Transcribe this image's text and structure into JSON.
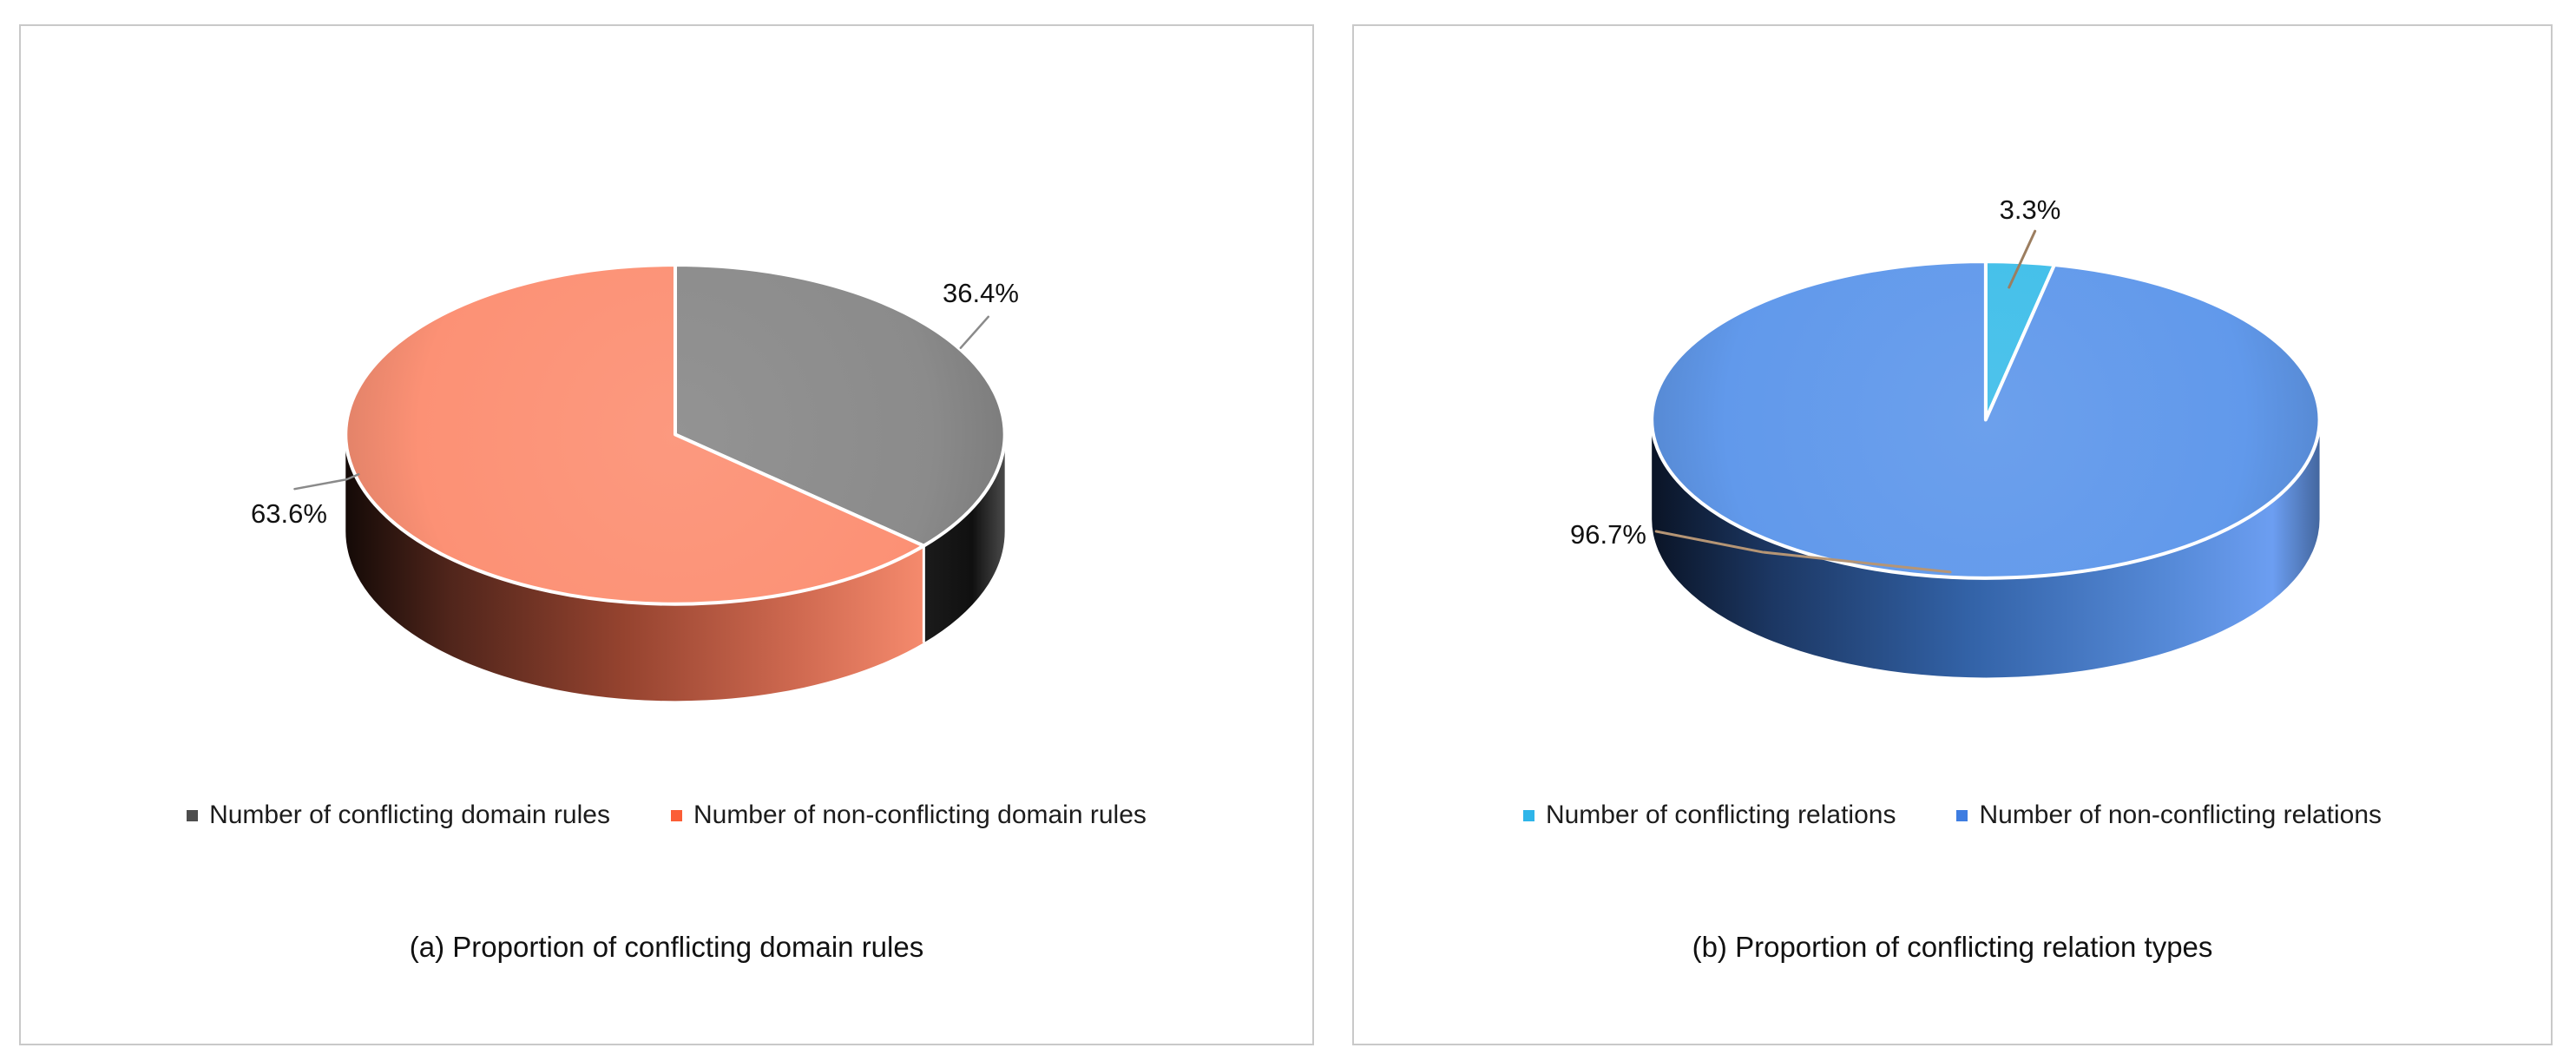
{
  "figure": {
    "background": "#ffffff",
    "panel_border_color": "#c9c9c9"
  },
  "chart_data": [
    {
      "type": "pie",
      "style": "3d-pie",
      "caption": "(a) Proportion of conflicting domain rules",
      "legend_position": "bottom",
      "start_angle_deg": 0,
      "direction": "clockwise",
      "slices": [
        {
          "name": "Number of conflicting domain rules",
          "value_pct": 36.4,
          "label": "36.4%",
          "color": "#8B8B8B",
          "legend_color": "#4D4D4D"
        },
        {
          "name": "Number of non-conflicting domain rules",
          "value_pct": 63.6,
          "label": "63.6%",
          "color": "#FC9175",
          "legend_color": "#FB5D36"
        }
      ]
    },
    {
      "type": "pie",
      "style": "3d-pie",
      "caption": "(b) Proportion of conflicting relation types",
      "legend_position": "bottom",
      "start_angle_deg": 0,
      "direction": "clockwise",
      "slices": [
        {
          "name": "Number of conflicting relations",
          "value_pct": 3.3,
          "label": "3.3%",
          "color": "#41BFEA",
          "legend_color": "#2EB5E9"
        },
        {
          "name": "Number of non-conflicting relations",
          "value_pct": 96.7,
          "label": "96.7%",
          "color": "#6199EB",
          "legend_color": "#3E7DE1"
        }
      ]
    }
  ]
}
